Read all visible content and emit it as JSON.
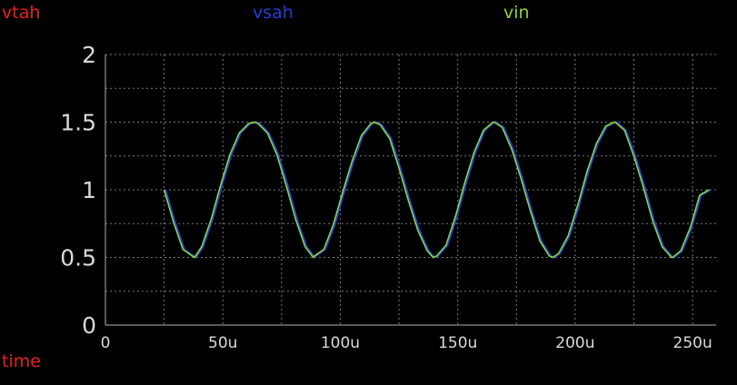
{
  "legend": {
    "vtah": {
      "label": "vtah",
      "color": "#e8211e"
    },
    "vsah": {
      "label": "vsah",
      "color": "#1f3fd6"
    },
    "vin": {
      "label": "vin",
      "color": "#8fd62a"
    }
  },
  "x_unit_label": {
    "text": "time",
    "color": "#e8211e"
  },
  "colors": {
    "background": "#000000",
    "grid": "#7a7a7a",
    "axis": "#b0b0b0",
    "ticks": "#d9d9d9"
  },
  "chart_data": {
    "type": "line",
    "xlim": [
      0,
      260
    ],
    "ylim": [
      0,
      2
    ],
    "grid": true,
    "legend_placement": "top",
    "x_ticks": [
      {
        "value": 0,
        "label": "0"
      },
      {
        "value": 50,
        "label": "50u"
      },
      {
        "value": 100,
        "label": "100u"
      },
      {
        "value": 150,
        "label": "150u"
      },
      {
        "value": 200,
        "label": "200u"
      },
      {
        "value": 250,
        "label": "250u"
      }
    ],
    "y_ticks": [
      {
        "value": 0,
        "label": "0"
      },
      {
        "value": 0.5,
        "label": "0.5"
      },
      {
        "value": 1,
        "label": "1"
      },
      {
        "value": 1.5,
        "label": "1.5"
      },
      {
        "value": 2,
        "label": "2"
      }
    ],
    "series": [
      {
        "name": "vin",
        "color": "#8fd62a",
        "x": [
          25,
          29,
          33,
          37,
          38,
          41,
          45,
          49,
          53,
          57,
          61,
          63.5,
          65,
          69,
          73,
          77,
          81,
          85,
          88.5,
          89,
          93,
          97,
          101,
          105,
          109,
          113,
          114.5,
          117,
          121,
          125,
          129,
          133,
          137,
          139.5,
          141,
          145,
          149,
          153,
          157,
          161,
          165,
          165.5,
          169,
          173,
          177,
          181,
          185,
          189,
          190.5,
          193,
          197,
          201,
          205,
          209,
          213,
          216.5,
          217,
          221,
          225,
          229,
          233,
          237,
          241,
          241.5,
          245,
          249,
          253,
          257
        ],
        "y": [
          1.0,
          0.76,
          0.56,
          0.51,
          0.5,
          0.58,
          0.78,
          1.03,
          1.26,
          1.42,
          1.49,
          1.5,
          1.49,
          1.42,
          1.26,
          1.03,
          0.78,
          0.58,
          0.5,
          0.51,
          0.56,
          0.74,
          0.98,
          1.21,
          1.4,
          1.49,
          1.5,
          1.48,
          1.38,
          1.16,
          0.92,
          0.7,
          0.55,
          0.5,
          0.51,
          0.59,
          0.8,
          1.05,
          1.28,
          1.44,
          1.5,
          1.5,
          1.46,
          1.3,
          1.08,
          0.84,
          0.62,
          0.51,
          0.5,
          0.53,
          0.66,
          0.88,
          1.13,
          1.34,
          1.47,
          1.5,
          1.5,
          1.44,
          1.25,
          1.02,
          0.77,
          0.58,
          0.5,
          0.5,
          0.55,
          0.72,
          0.96,
          1.0
        ]
      }
    ]
  }
}
